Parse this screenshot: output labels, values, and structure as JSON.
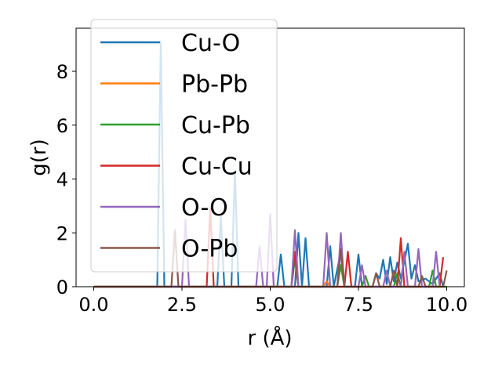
{
  "chart_data": {
    "type": "line",
    "title": "",
    "xlabel": "r (Å)",
    "ylabel": "g(r)",
    "xlim": [
      -0.5,
      10.5
    ],
    "ylim": [
      0,
      9.6
    ],
    "xticks": [
      "0.0",
      "2.5",
      "5.0",
      "7.5",
      "10.0"
    ],
    "xtick_values": [
      0,
      2.5,
      5,
      7.5,
      10
    ],
    "yticks": [
      "0",
      "2",
      "4",
      "6",
      "8"
    ],
    "ytick_values": [
      0,
      2,
      4,
      6,
      8
    ],
    "grid": false,
    "legend_position": "upper-left",
    "series": [
      {
        "name": "Cu-O",
        "color": "#1f77b4",
        "points": [
          [
            0,
            0
          ],
          [
            1.8,
            0
          ],
          [
            1.9,
            9.1
          ],
          [
            2.0,
            0
          ],
          [
            3.5,
            0
          ],
          [
            3.6,
            2.6
          ],
          [
            3.7,
            0
          ],
          [
            3.9,
            0
          ],
          [
            4.0,
            4.3
          ],
          [
            4.1,
            0
          ],
          [
            5.2,
            0
          ],
          [
            5.3,
            1.2
          ],
          [
            5.4,
            0
          ],
          [
            5.7,
            0
          ],
          [
            5.8,
            2.0
          ],
          [
            5.9,
            0
          ],
          [
            6.0,
            1.8
          ],
          [
            6.1,
            0
          ],
          [
            6.6,
            0
          ],
          [
            6.7,
            1.5
          ],
          [
            6.8,
            0
          ],
          [
            7.0,
            1.3
          ],
          [
            7.1,
            0
          ],
          [
            7.4,
            0
          ],
          [
            7.5,
            1.2
          ],
          [
            7.6,
            0
          ],
          [
            7.9,
            0
          ],
          [
            8.0,
            0.5
          ],
          [
            8.1,
            0.3
          ],
          [
            8.2,
            1.0
          ],
          [
            8.3,
            0.1
          ],
          [
            8.4,
            1.1
          ],
          [
            8.5,
            0.2
          ],
          [
            8.6,
            0.9
          ],
          [
            8.7,
            0.3
          ],
          [
            8.9,
            1.6
          ],
          [
            9.0,
            0.3
          ],
          [
            9.1,
            0.8
          ],
          [
            9.2,
            0.2
          ],
          [
            9.4,
            0.3
          ],
          [
            9.6,
            0.1
          ],
          [
            9.8,
            0.5
          ],
          [
            9.9,
            0.0
          ]
        ]
      },
      {
        "name": "Pb-Pb",
        "color": "#ff7f0e",
        "points": [
          [
            0,
            0
          ],
          [
            6.5,
            0
          ],
          [
            6.6,
            0.2
          ],
          [
            6.7,
            0
          ],
          [
            10.0,
            0
          ]
        ]
      },
      {
        "name": "Cu-Pb",
        "color": "#2ca02c",
        "points": [
          [
            0,
            0
          ],
          [
            5.6,
            0
          ],
          [
            5.7,
            1.0
          ],
          [
            5.8,
            0
          ],
          [
            6.9,
            0
          ],
          [
            7.0,
            0.8
          ],
          [
            7.1,
            0
          ],
          [
            7.6,
            0
          ],
          [
            7.7,
            0.4
          ],
          [
            7.8,
            0
          ],
          [
            8.5,
            0
          ],
          [
            8.6,
            0.5
          ],
          [
            8.7,
            0
          ],
          [
            9.5,
            0
          ],
          [
            9.6,
            0.6
          ],
          [
            9.7,
            0
          ],
          [
            10.0,
            0
          ]
        ]
      },
      {
        "name": "Cu-Cu",
        "color": "#d62728",
        "points": [
          [
            0,
            0
          ],
          [
            3.2,
            0
          ],
          [
            3.3,
            2.9
          ],
          [
            3.4,
            0
          ],
          [
            5.6,
            0
          ],
          [
            5.7,
            1.3
          ],
          [
            5.8,
            0
          ],
          [
            7.1,
            0
          ],
          [
            7.2,
            1.3
          ],
          [
            7.3,
            0
          ],
          [
            8.6,
            0
          ],
          [
            8.7,
            1.8
          ],
          [
            8.8,
            0
          ],
          [
            9.8,
            0
          ],
          [
            9.9,
            1.1
          ]
        ]
      },
      {
        "name": "O-O",
        "color": "#9467bd",
        "points": [
          [
            0,
            0
          ],
          [
            2.5,
            0
          ],
          [
            2.6,
            2.5
          ],
          [
            2.7,
            0
          ],
          [
            4.6,
            0
          ],
          [
            4.7,
            1.5
          ],
          [
            4.8,
            0
          ],
          [
            4.9,
            0
          ],
          [
            5.0,
            2.7
          ],
          [
            5.1,
            0
          ],
          [
            5.6,
            0
          ],
          [
            5.7,
            2.1
          ],
          [
            5.8,
            0
          ],
          [
            6.5,
            0
          ],
          [
            6.6,
            2.0
          ],
          [
            6.7,
            0
          ],
          [
            6.9,
            0
          ],
          [
            7.0,
            2.0
          ],
          [
            7.1,
            0
          ],
          [
            7.5,
            0
          ],
          [
            7.6,
            0.8
          ],
          [
            7.7,
            0
          ],
          [
            8.2,
            0
          ],
          [
            8.3,
            0.6
          ],
          [
            8.4,
            0
          ],
          [
            8.7,
            0
          ],
          [
            8.8,
            1.3
          ],
          [
            8.9,
            0
          ],
          [
            9.1,
            0
          ],
          [
            9.2,
            1.4
          ],
          [
            9.3,
            0
          ],
          [
            9.6,
            0
          ],
          [
            9.7,
            1.3
          ],
          [
            9.8,
            0
          ]
        ]
      },
      {
        "name": "O-Pb",
        "color": "#8c564b",
        "points": [
          [
            0,
            0
          ],
          [
            2.2,
            0
          ],
          [
            2.3,
            2.1
          ],
          [
            2.4,
            0
          ],
          [
            6.9,
            0
          ],
          [
            7.0,
            1.4
          ],
          [
            7.1,
            0
          ],
          [
            7.9,
            0
          ],
          [
            8.0,
            0.5
          ],
          [
            8.1,
            0
          ],
          [
            8.4,
            0
          ],
          [
            8.5,
            0.6
          ],
          [
            8.6,
            0
          ],
          [
            9.2,
            0
          ],
          [
            9.3,
            0.4
          ],
          [
            9.4,
            0
          ],
          [
            9.9,
            0
          ],
          [
            10.0,
            0.6
          ]
        ]
      }
    ]
  }
}
